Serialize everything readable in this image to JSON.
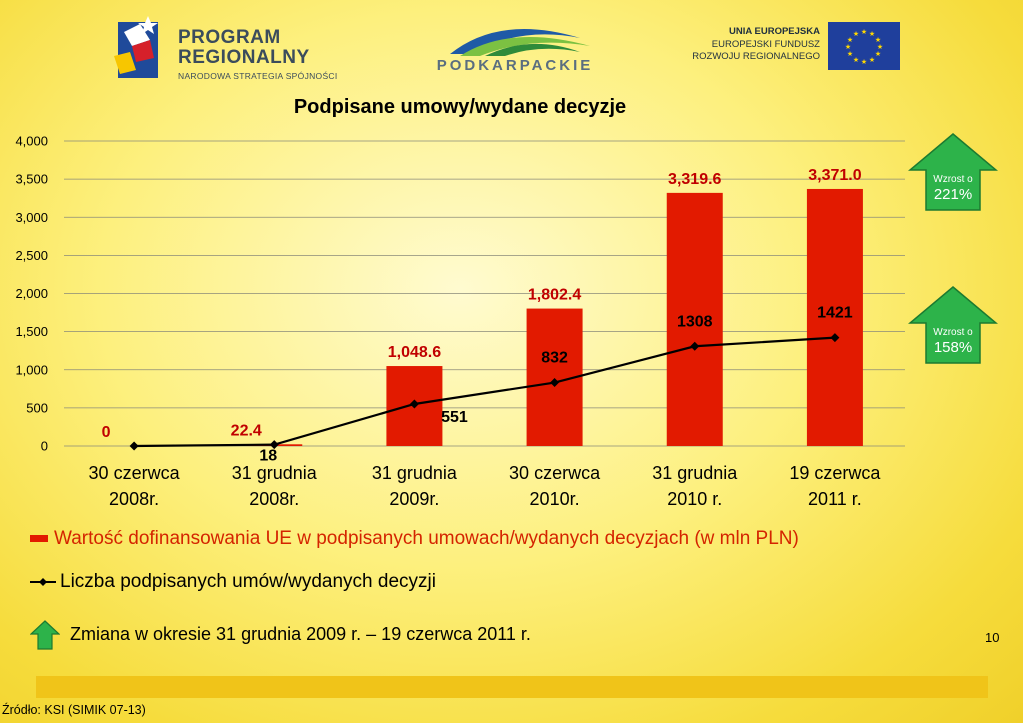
{
  "header": {
    "program_title_line1": "PROGRAM",
    "program_title_line2": "REGIONALNY",
    "program_subtitle": "NARODOWA STRATEGIA SPÓJNOŚCI",
    "podkarpackie": "PODKARPACKIE",
    "eu_line1": "UNIA EUROPEJSKA",
    "eu_line2": "EUROPEJSKI FUNDUSZ",
    "eu_line3": "ROZWOJU REGIONALNEGO"
  },
  "chart_data": {
    "type": "bar",
    "title": "Podpisane umowy/wydane decyzje",
    "categories": [
      "30 czerwca 2008r.",
      "31 grudnia 2008r.",
      "31 grudnia 2009r.",
      "30 czerwca 2010r.",
      "31 grudnia 2010 r.",
      "19 czerwca 2011 r."
    ],
    "category_lines": [
      [
        "30 czerwca",
        "2008r."
      ],
      [
        "31 grudnia",
        "2008r."
      ],
      [
        "31 grudnia",
        "2009r."
      ],
      [
        "30 czerwca",
        "2010r."
      ],
      [
        "31 grudnia",
        "2010 r."
      ],
      [
        "19 czerwca",
        "2011 r."
      ]
    ],
    "series": [
      {
        "name": "Wartość dofinansowania UE w podpisanych umowach/wydanych decyzjach (w mln PLN)",
        "type": "bar",
        "color": "#e21a00",
        "values": [
          0,
          22.4,
          1048.6,
          1802.4,
          3319.6,
          3371.0
        ],
        "labels": [
          "0",
          "22.4",
          "1,048.6",
          "1,802.4",
          "3,319.6",
          "3,371.0"
        ]
      },
      {
        "name": "Liczba podpisanych umów/wydanych decyzji",
        "type": "line",
        "color": "#000000",
        "values": [
          0,
          18,
          551,
          832,
          1308,
          1421
        ],
        "labels": [
          "",
          "18",
          "551",
          "832",
          "1308",
          "1421"
        ]
      }
    ],
    "ylim": [
      0,
      4000
    ],
    "yticks": [
      0,
      500,
      1000,
      1500,
      2000,
      2500,
      3000,
      3500,
      4000
    ],
    "ytick_labels": [
      "0",
      "500",
      "1,000",
      "1,500",
      "2,000",
      "2,500",
      "3,000",
      "3,500",
      "4,000"
    ],
    "grid": true
  },
  "badges": [
    {
      "label": "Wzrost o",
      "value": "221%",
      "color": "#2db34a"
    },
    {
      "label": "Wzrost o",
      "value": "158%",
      "color": "#2db34a"
    }
  ],
  "note": "Zmiana w okresie 31 grudnia 2009 r. – 19 czerwca 2011 r.",
  "page_number": "10",
  "source": "Źródło: KSI (SIMIK 07-13)"
}
